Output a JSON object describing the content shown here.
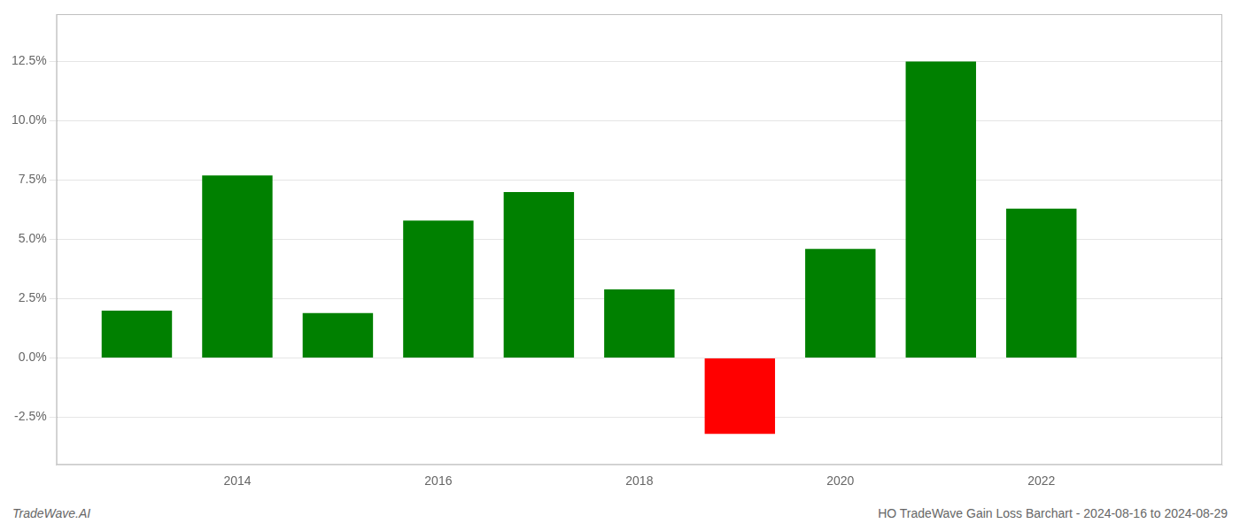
{
  "chart_data": {
    "type": "bar",
    "x": [
      2013,
      2014,
      2015,
      2016,
      2017,
      2018,
      2019,
      2020,
      2021,
      2022
    ],
    "values": [
      0.02,
      0.077,
      0.019,
      0.058,
      0.07,
      0.029,
      -0.032,
      0.046,
      0.125,
      0.063
    ],
    "colors": [
      "#008000",
      "#008000",
      "#008000",
      "#008000",
      "#008000",
      "#008000",
      "#ff0000",
      "#008000",
      "#008000",
      "#008000"
    ],
    "xlim": [
      2012.2,
      2023.8
    ],
    "xticks": [
      2014,
      2016,
      2018,
      2020,
      2022
    ],
    "ylim": [
      -0.045,
      0.145
    ],
    "yticks": [
      {
        "value": -0.025,
        "label": "-2.5%"
      },
      {
        "value": 0.0,
        "label": "0.0%"
      },
      {
        "value": 0.025,
        "label": "2.5%"
      },
      {
        "value": 0.05,
        "label": "5.0%"
      },
      {
        "value": 0.075,
        "label": "7.5%"
      },
      {
        "value": 0.1,
        "label": "10.0%"
      },
      {
        "value": 0.125,
        "label": "12.5%"
      }
    ],
    "grid": true,
    "annotations": [
      "TradeWave.AI",
      "HO TradeWave Gain Loss Barchart - 2024-08-16 to 2024-08-29"
    ]
  }
}
